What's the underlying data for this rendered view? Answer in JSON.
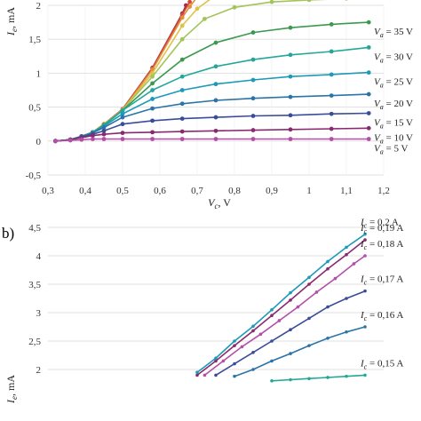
{
  "chart_data": [
    {
      "type": "line",
      "panel_label": "",
      "xlabel": "Vc, V",
      "ylabel": "Ie, mA",
      "xlim": [
        0.3,
        1.2
      ],
      "ylim": [
        -0.5,
        2
      ],
      "xticks": [
        "0,3",
        "0,4",
        "0,5",
        "0,6",
        "0,7",
        "0,8",
        "0,9",
        "1",
        "1,1",
        "1,2"
      ],
      "yticks": [
        "-0,5",
        "0",
        "0,5",
        "1",
        "1,5",
        "2"
      ],
      "grid": true,
      "series": [
        {
          "name": "Va = 5 V",
          "color": "#b34fa7",
          "x": [
            0.32,
            0.36,
            0.39,
            0.42,
            0.45,
            0.5,
            0.58,
            0.66,
            0.75,
            0.85,
            0.95,
            1.06,
            1.16
          ],
          "y": [
            0.0,
            0.01,
            0.02,
            0.03,
            0.03,
            0.03,
            0.03,
            0.03,
            0.03,
            0.03,
            0.03,
            0.03,
            0.03
          ]
        },
        {
          "name": "Va = 10 V",
          "color": "#8a2a6e",
          "x": [
            0.32,
            0.36,
            0.39,
            0.42,
            0.45,
            0.5,
            0.58,
            0.66,
            0.75,
            0.85,
            0.95,
            1.06,
            1.16
          ],
          "y": [
            0.0,
            0.02,
            0.05,
            0.08,
            0.1,
            0.12,
            0.13,
            0.14,
            0.15,
            0.16,
            0.17,
            0.18,
            0.19
          ]
        },
        {
          "name": "Va = 15 V",
          "color": "#3a4d9a",
          "x": [
            0.32,
            0.36,
            0.39,
            0.42,
            0.45,
            0.5,
            0.58,
            0.66,
            0.75,
            0.85,
            0.95,
            1.06,
            1.16
          ],
          "y": [
            0.0,
            0.02,
            0.06,
            0.1,
            0.15,
            0.25,
            0.3,
            0.33,
            0.35,
            0.37,
            0.38,
            0.4,
            0.41
          ]
        },
        {
          "name": "Va = 20 V",
          "color": "#2a74a8",
          "x": [
            0.32,
            0.36,
            0.39,
            0.42,
            0.45,
            0.5,
            0.58,
            0.66,
            0.75,
            0.85,
            0.95,
            1.06,
            1.16
          ],
          "y": [
            0.0,
            0.02,
            0.07,
            0.12,
            0.2,
            0.35,
            0.48,
            0.55,
            0.6,
            0.63,
            0.65,
            0.67,
            0.69
          ]
        },
        {
          "name": "Va = 25 V",
          "color": "#1d9ab8",
          "x": [
            0.32,
            0.36,
            0.39,
            0.42,
            0.45,
            0.5,
            0.58,
            0.66,
            0.75,
            0.85,
            0.95,
            1.06,
            1.16
          ],
          "y": [
            0.0,
            0.02,
            0.07,
            0.12,
            0.22,
            0.4,
            0.62,
            0.75,
            0.84,
            0.9,
            0.95,
            0.98,
            1.01
          ]
        },
        {
          "name": "Va = 30 V",
          "color": "#24a79a",
          "x": [
            0.32,
            0.36,
            0.39,
            0.42,
            0.45,
            0.5,
            0.58,
            0.66,
            0.75,
            0.85,
            0.95,
            1.06,
            1.16
          ],
          "y": [
            0.0,
            0.02,
            0.07,
            0.13,
            0.23,
            0.45,
            0.75,
            0.95,
            1.1,
            1.2,
            1.27,
            1.32,
            1.38
          ]
        },
        {
          "name": "Va = 35 V",
          "color": "#3c9950",
          "x": [
            0.32,
            0.36,
            0.39,
            0.42,
            0.45,
            0.5,
            0.58,
            0.66,
            0.75,
            0.85,
            0.95,
            1.06,
            1.16
          ],
          "y": [
            0.0,
            0.02,
            0.07,
            0.13,
            0.24,
            0.45,
            0.85,
            1.2,
            1.45,
            1.6,
            1.67,
            1.72,
            1.75
          ]
        },
        {
          "name": "",
          "color": "#a3c45a",
          "x": [
            0.32,
            0.36,
            0.39,
            0.42,
            0.45,
            0.5,
            0.58,
            0.66,
            0.72,
            0.8,
            0.9,
            1.0,
            1.1
          ],
          "y": [
            0.0,
            0.02,
            0.07,
            0.13,
            0.24,
            0.46,
            0.95,
            1.5,
            1.8,
            1.97,
            2.05,
            2.08,
            2.1
          ]
        },
        {
          "name": "",
          "color": "#e0c24a",
          "x": [
            0.32,
            0.36,
            0.39,
            0.42,
            0.45,
            0.5,
            0.58,
            0.66,
            0.7,
            0.75
          ],
          "y": [
            0.0,
            0.02,
            0.07,
            0.13,
            0.25,
            0.46,
            1.0,
            1.7,
            1.95,
            2.15
          ]
        },
        {
          "name": "",
          "color": "#e48e3a",
          "x": [
            0.32,
            0.36,
            0.39,
            0.42,
            0.45,
            0.5,
            0.58,
            0.66,
            0.68,
            0.7
          ],
          "y": [
            0.0,
            0.02,
            0.07,
            0.13,
            0.25,
            0.46,
            1.05,
            1.82,
            1.98,
            2.12
          ]
        },
        {
          "name": "",
          "color": "#d24a3a",
          "x": [
            0.32,
            0.36,
            0.39,
            0.42,
            0.45,
            0.5,
            0.58,
            0.66,
            0.68
          ],
          "y": [
            0.0,
            0.02,
            0.07,
            0.13,
            0.25,
            0.47,
            1.07,
            1.86,
            2.05
          ]
        },
        {
          "name": "",
          "color": "#a32a4a",
          "x": [
            0.32,
            0.36,
            0.39,
            0.42,
            0.45,
            0.5,
            0.58,
            0.66,
            0.67
          ],
          "y": [
            0.0,
            0.02,
            0.07,
            0.13,
            0.25,
            0.47,
            1.08,
            1.88,
            2.0
          ]
        }
      ]
    },
    {
      "type": "line",
      "panel_label": "b)",
      "xlabel": "",
      "ylabel": "Ie, mA",
      "xlim": [
        0.3,
        1.2
      ],
      "ylim": [
        1.8,
        4.5
      ],
      "yticks": [
        "2",
        "2,5",
        "3",
        "3,5",
        "4",
        "4,5"
      ],
      "grid": true,
      "series": [
        {
          "name": "Ic = 0,2 A",
          "color": "#1d9ab8",
          "x": [
            0.7,
            0.75,
            0.8,
            0.85,
            0.9,
            0.95,
            1.0,
            1.05,
            1.1,
            1.15
          ],
          "y": [
            1.95,
            2.2,
            2.5,
            2.76,
            3.05,
            3.35,
            3.62,
            3.9,
            4.15,
            4.38
          ]
        },
        {
          "name": "Ic = 0,19 A",
          "color": "#8a2a6e",
          "x": [
            0.7,
            0.75,
            0.8,
            0.85,
            0.9,
            0.95,
            1.0,
            1.05,
            1.1,
            1.15
          ],
          "y": [
            1.9,
            2.15,
            2.42,
            2.68,
            2.95,
            3.22,
            3.5,
            3.77,
            4.02,
            4.28
          ]
        },
        {
          "name": "Ic = 0,18 A",
          "color": "#b34fa7",
          "x": [
            0.72,
            0.77,
            0.82,
            0.87,
            0.92,
            0.97,
            1.02,
            1.07,
            1.12,
            1.15
          ],
          "y": [
            1.9,
            2.15,
            2.4,
            2.62,
            2.86,
            3.1,
            3.36,
            3.6,
            3.86,
            4.0
          ]
        },
        {
          "name": "Ic = 0,17 A",
          "color": "#3a4d9a",
          "x": [
            0.75,
            0.8,
            0.85,
            0.9,
            0.95,
            1.0,
            1.05,
            1.1,
            1.15
          ],
          "y": [
            1.9,
            2.1,
            2.3,
            2.5,
            2.7,
            2.9,
            3.1,
            3.25,
            3.38
          ]
        },
        {
          "name": "Ic = 0,16 A",
          "color": "#2a74a8",
          "x": [
            0.8,
            0.85,
            0.9,
            0.95,
            1.0,
            1.05,
            1.1,
            1.15
          ],
          "y": [
            1.88,
            2.0,
            2.15,
            2.28,
            2.42,
            2.55,
            2.66,
            2.75
          ]
        },
        {
          "name": "Ic = 0,15 A",
          "color": "#24a79a",
          "x": [
            0.9,
            0.95,
            1.0,
            1.05,
            1.1,
            1.15
          ],
          "y": [
            1.8,
            1.82,
            1.84,
            1.86,
            1.88,
            1.9
          ]
        }
      ]
    }
  ]
}
